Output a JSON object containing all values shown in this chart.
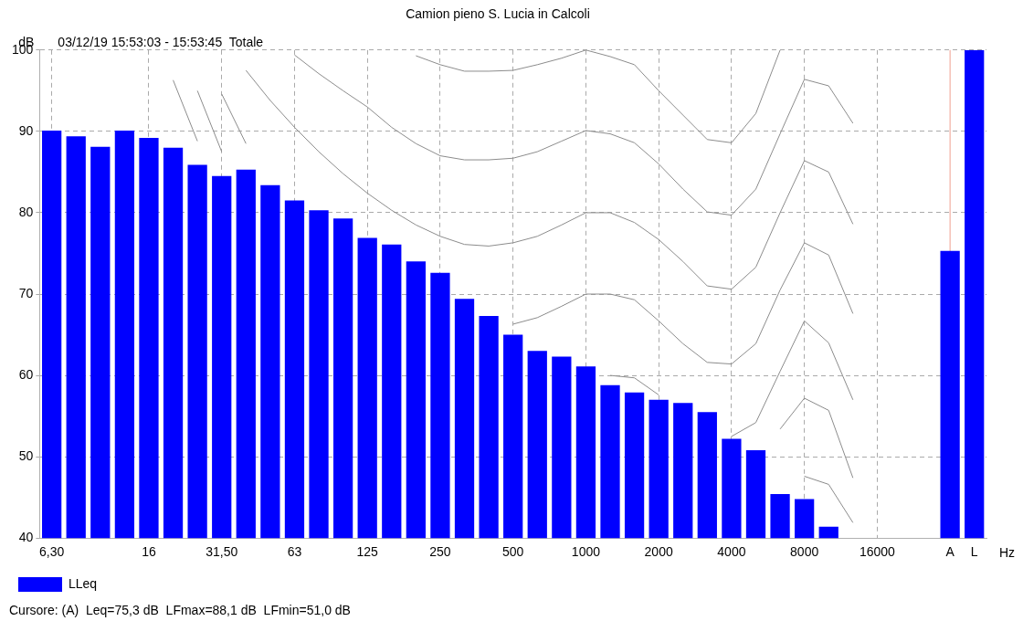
{
  "chart_data": {
    "type": "bar",
    "title": "Camion pieno S. Lucia in Calcoli",
    "subtitle": "03/12/19 15:53:03 - 15:53:45  Totale",
    "ylabel": "dB",
    "xlabel": "Hz",
    "annotations": [
      "Cursore: (A)  Leq=75,3 dB  LFmax=88,1 dB  LFmin=51,0 dB"
    ],
    "categories": [
      "6,30",
      null,
      null,
      null,
      "16",
      null,
      null,
      "31,50",
      null,
      null,
      "63",
      null,
      null,
      "125",
      null,
      null,
      "250",
      null,
      null,
      "500",
      null,
      null,
      "1000",
      null,
      null,
      "2000",
      null,
      null,
      "4000",
      null,
      null,
      "8000",
      null,
      null,
      "16000",
      null,
      null,
      "A",
      "L"
    ],
    "series": [
      {
        "name": "LLeq",
        "color": "#0000ff",
        "values": [
          90.1,
          89.4,
          88.1,
          90.1,
          89.2,
          88.0,
          85.9,
          84.5,
          85.3,
          83.4,
          81.5,
          80.3,
          79.3,
          76.9,
          76.1,
          74.0,
          72.6,
          69.4,
          67.3,
          65.0,
          63.0,
          62.3,
          61.1,
          58.8,
          57.9,
          57.0,
          56.6,
          55.5,
          52.2,
          50.8,
          45.4,
          44.8,
          41.4,
          null,
          null,
          null,
          null,
          75.3,
          100
        ]
      },
      {
        "type": "line",
        "color": "#8c8c8c",
        "values": [
          null,
          null,
          null,
          null,
          null,
          null,
          null,
          null,
          null,
          null,
          null,
          null,
          null,
          null,
          null,
          99.3,
          98.2,
          97.4,
          97.4,
          97.5,
          98.2,
          99.0,
          100,
          99.2,
          98.2,
          95.0,
          92.0,
          89.0,
          88.6,
          92.2,
          100,
          null,
          null,
          null,
          null,
          null,
          null,
          null,
          null
        ]
      },
      {
        "type": "line",
        "color": "#8c8c8c",
        "values": [
          null,
          null,
          null,
          null,
          null,
          null,
          null,
          null,
          null,
          null,
          99.4,
          97.1,
          95.0,
          93.0,
          90.5,
          88.5,
          87.0,
          86.5,
          86.5,
          86.7,
          87.5,
          88.8,
          90.1,
          89.7,
          88.6,
          86.0,
          82.9,
          80.1,
          79.7,
          82.9,
          89.7,
          96.4,
          95.6,
          91.0,
          null,
          null,
          null,
          null,
          null
        ]
      },
      {
        "type": "line",
        "color": "#8c8c8c",
        "values": [
          null,
          null,
          null,
          null,
          null,
          null,
          null,
          null,
          97.5,
          93.8,
          90.5,
          87.5,
          84.8,
          82.4,
          80.3,
          78.5,
          77.1,
          76.1,
          75.9,
          76.3,
          77.1,
          78.5,
          80.0,
          80.0,
          78.8,
          76.7,
          74.0,
          71.0,
          70.6,
          73.3,
          80.0,
          86.4,
          85.0,
          78.6,
          null,
          null,
          null,
          null,
          null
        ]
      },
      {
        "type": "line",
        "color": "#8c8c8c",
        "values": [
          null,
          null,
          null,
          null,
          null,
          null,
          null,
          94.6,
          88.5,
          null,
          null,
          null,
          null,
          null,
          null,
          null,
          null,
          null,
          null,
          66.3,
          67.1,
          68.5,
          70.0,
          70.0,
          69.3,
          66.7,
          63.9,
          61.6,
          61.4,
          63.9,
          70.5,
          76.3,
          74.8,
          67.6,
          null,
          null,
          null,
          null,
          null
        ]
      },
      {
        "type": "line",
        "color": "#8c8c8c",
        "values": [
          null,
          null,
          null,
          null,
          null,
          null,
          95.0,
          87.5,
          null,
          null,
          null,
          null,
          null,
          null,
          null,
          null,
          null,
          null,
          null,
          null,
          null,
          null,
          null,
          60.0,
          59.7,
          57.6,
          null,
          null,
          52.5,
          54.2,
          60.5,
          66.7,
          64.0,
          57.0,
          null,
          null,
          null,
          null,
          null
        ]
      },
      {
        "type": "line",
        "color": "#8c8c8c",
        "values": [
          null,
          null,
          null,
          null,
          null,
          96.3,
          88.8,
          null,
          null,
          null,
          null,
          null,
          null,
          null,
          null,
          null,
          null,
          null,
          null,
          null,
          null,
          null,
          null,
          null,
          null,
          null,
          null,
          null,
          null,
          null,
          53.4,
          57.2,
          55.7,
          47.4,
          null,
          null,
          null,
          null,
          null
        ]
      },
      {
        "type": "line",
        "color": "#8c8c8c",
        "values": [
          null,
          null,
          null,
          null,
          null,
          null,
          null,
          null,
          null,
          null,
          null,
          null,
          null,
          null,
          null,
          null,
          null,
          null,
          null,
          null,
          null,
          null,
          null,
          null,
          null,
          null,
          null,
          null,
          null,
          null,
          null,
          47.6,
          46.6,
          41.9,
          null,
          null,
          null,
          null,
          null
        ]
      }
    ],
    "ylim": [
      40,
      100
    ],
    "yticks": [
      40,
      50,
      60,
      70,
      80,
      90,
      100
    ],
    "grid": true,
    "legend": "bottom left",
    "ref_lines": [
      {
        "axis": "x",
        "value": "A",
        "color": "#f0a090"
      }
    ]
  }
}
